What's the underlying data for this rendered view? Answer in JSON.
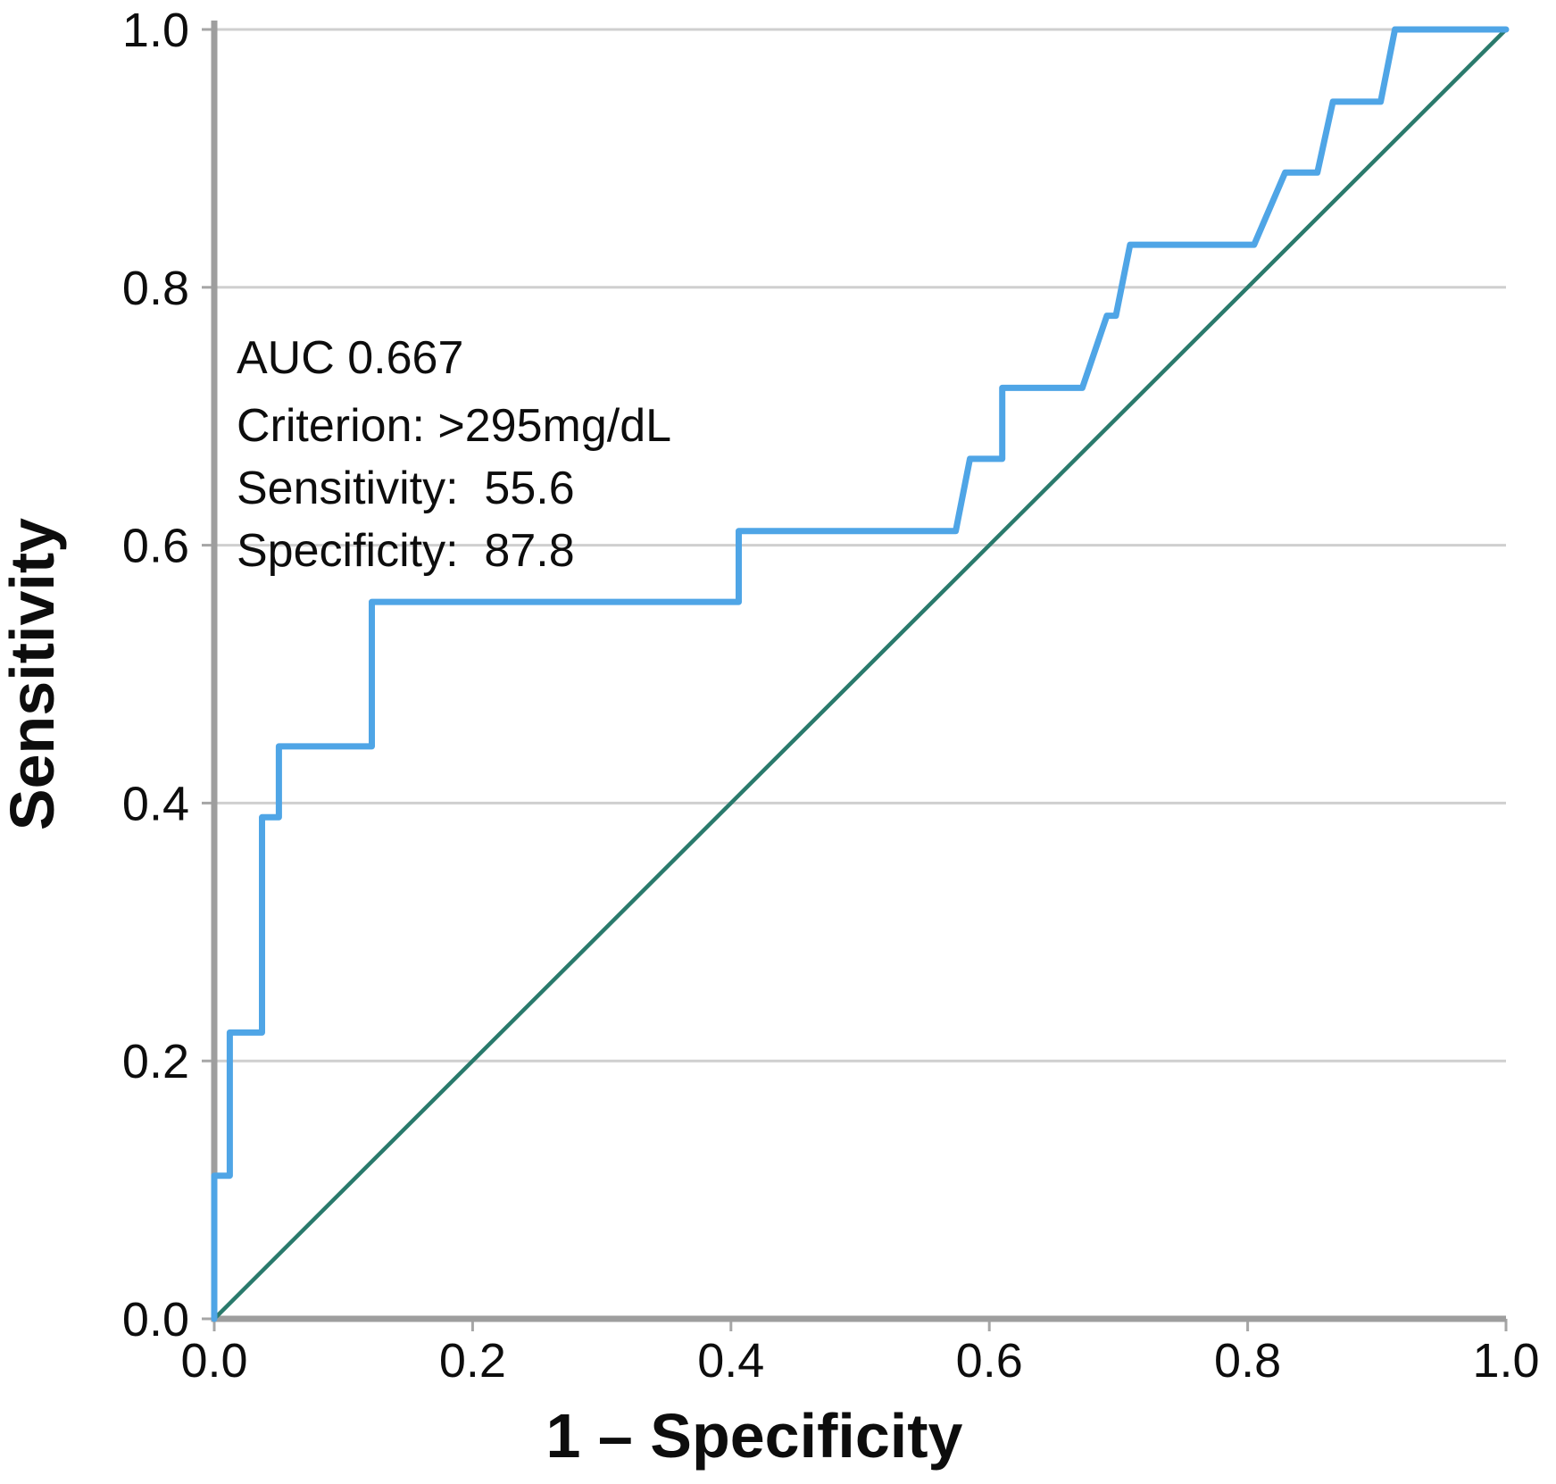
{
  "chart_data": {
    "type": "line",
    "subtype": "roc-curve",
    "title": "",
    "xlabel": "1 – Specificity",
    "ylabel": "Sensitivity",
    "xlim": [
      0.0,
      1.0
    ],
    "ylim": [
      0.0,
      1.0
    ],
    "xtick_values": [
      0.0,
      0.2,
      0.4,
      0.6,
      0.8,
      1.0
    ],
    "xtick_labels": [
      "0.0",
      "0.2",
      "0.4",
      "0.6",
      "0.8",
      "1.0"
    ],
    "ytick_values": [
      0.0,
      0.2,
      0.4,
      0.6,
      0.8,
      1.0
    ],
    "ytick_labels": [
      "0.0",
      "0.2",
      "0.4",
      "0.6",
      "0.8",
      "1.0"
    ],
    "grid": "horizontal-only",
    "legend": "none",
    "annotation": {
      "lines": [
        "AUC 0.667",
        "Criterion: >295mg/dL",
        "Sensitivity:  55.6",
        "Specificity:  87.8"
      ]
    },
    "series": [
      {
        "name": "roc-curve",
        "color": "#4fa5e6",
        "stroke_width": 7,
        "points": [
          [
            0.0,
            0.0
          ],
          [
            0.0,
            0.111
          ],
          [
            0.012,
            0.111
          ],
          [
            0.012,
            0.222
          ],
          [
            0.037,
            0.222
          ],
          [
            0.037,
            0.389
          ],
          [
            0.05,
            0.389
          ],
          [
            0.05,
            0.444
          ],
          [
            0.122,
            0.444
          ],
          [
            0.122,
            0.556
          ],
          [
            0.406,
            0.556
          ],
          [
            0.406,
            0.611
          ],
          [
            0.574,
            0.611
          ],
          [
            0.585,
            0.667
          ],
          [
            0.61,
            0.667
          ],
          [
            0.61,
            0.722
          ],
          [
            0.672,
            0.722
          ],
          [
            0.691,
            0.778
          ],
          [
            0.698,
            0.778
          ],
          [
            0.709,
            0.833
          ],
          [
            0.805,
            0.833
          ],
          [
            0.829,
            0.889
          ],
          [
            0.854,
            0.889
          ],
          [
            0.866,
            0.944
          ],
          [
            0.903,
            0.944
          ],
          [
            0.914,
            1.0
          ],
          [
            1.0,
            1.0
          ]
        ]
      },
      {
        "name": "reference-diagonal",
        "color": "#2a7a6c",
        "stroke_width": 4.5,
        "points": [
          [
            0.0,
            0.0
          ],
          [
            1.0,
            1.0
          ]
        ]
      }
    ],
    "colors": {
      "gridline": "#cfcfcf",
      "axis": "#9e9e9e",
      "tick": "#a6a6a6",
      "text": "#0d0d0d",
      "background": "#ffffff"
    }
  }
}
